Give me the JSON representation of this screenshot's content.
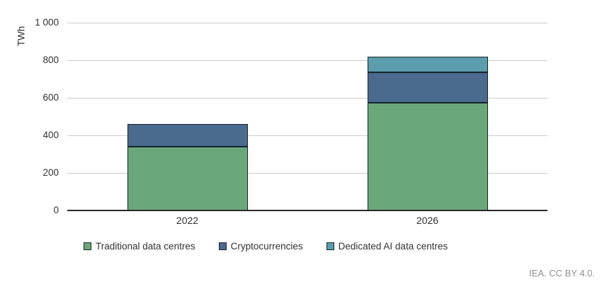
{
  "figure": {
    "attribution": "IEA. CC BY 4.0."
  },
  "chart_data": {
    "type": "bar",
    "stacked": true,
    "title": "",
    "xlabel": "",
    "ylabel": "TWh",
    "categories": [
      "2022",
      "2026"
    ],
    "series": [
      {
        "name": "Traditional data centres",
        "color": "#6aa87c",
        "values": [
          340,
          575
        ]
      },
      {
        "name": "Cryptocurrencies",
        "color": "#4a6b8e",
        "values": [
          120,
          160
        ]
      },
      {
        "name": "Dedicated AI data centres",
        "color": "#5b9dac",
        "values": [
          0,
          85
        ]
      }
    ],
    "ylim": [
      0,
      1000
    ],
    "yticks": [
      0,
      200,
      400,
      600,
      800,
      1000
    ],
    "ytick_labels": [
      "0",
      "200",
      "400",
      "600",
      "800",
      "1 000"
    ],
    "grid": "horizontal",
    "legend_position": "bottom",
    "colors": {
      "segment_border": "#17242e",
      "gridline": "#cbcbcb",
      "axis_line": "#2b2b2b",
      "text": "#333333",
      "attribution_text": "#8f8f8f"
    }
  }
}
